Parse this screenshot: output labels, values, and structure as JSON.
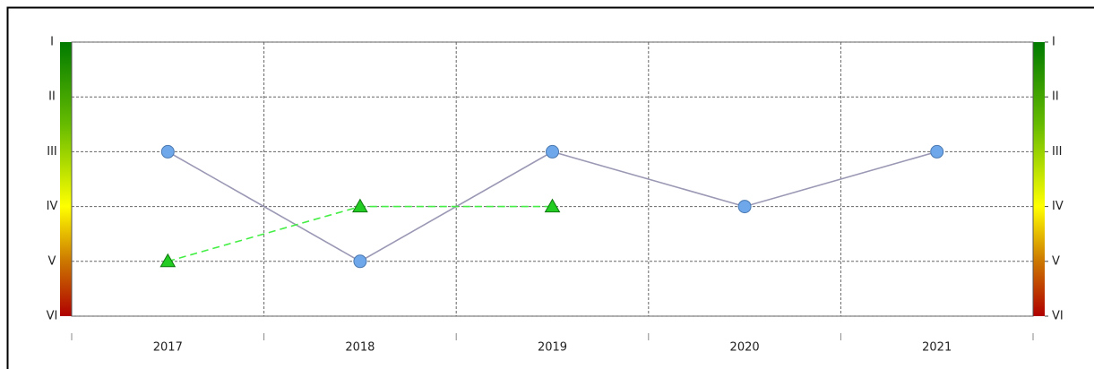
{
  "chart_data": {
    "type": "line",
    "categories": [
      "2017",
      "2018",
      "2019",
      "2020",
      "2021"
    ],
    "series": [
      {
        "color": "#6fa8ea",
        "line_color": "#9a98b4",
        "marker": "circle",
        "dashed": false,
        "values": [
          3,
          5,
          3,
          4,
          3
        ]
      },
      {
        "color": "#22cc22",
        "line_color": "#44ee44",
        "marker": "triangle",
        "dashed": true,
        "values": [
          5,
          4,
          4,
          null,
          null
        ]
      }
    ],
    "ylim": [
      6,
      1
    ],
    "yticks": [
      {
        "value": 1,
        "label": "I"
      },
      {
        "value": 2,
        "label": "II"
      },
      {
        "value": 3,
        "label": "III"
      },
      {
        "value": 4,
        "label": "IV"
      },
      {
        "value": 5,
        "label": "V"
      },
      {
        "value": 6,
        "label": "VI"
      }
    ],
    "y2lim": [
      6,
      1
    ],
    "y2ticks": [
      {
        "value": 1,
        "label": "I"
      },
      {
        "value": 2,
        "label": "II"
      },
      {
        "value": 3,
        "label": "III"
      },
      {
        "value": 4,
        "label": "IV"
      },
      {
        "value": 5,
        "label": "V"
      },
      {
        "value": 6,
        "label": "VI"
      }
    ],
    "grid": true
  }
}
